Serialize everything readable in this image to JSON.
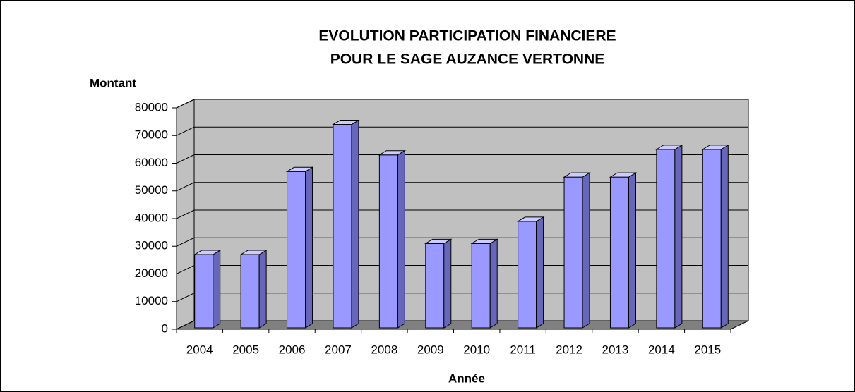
{
  "chart_data": {
    "type": "bar3d",
    "title": [
      "EVOLUTION PARTICIPATION FINANCIERE",
      "POUR LE SAGE AUZANCE VERTONNE"
    ],
    "y_label": "Montant",
    "x_label": "Année",
    "categories": [
      "2004",
      "2005",
      "2006",
      "2007",
      "2008",
      "2009",
      "2010",
      "2011",
      "2012",
      "2013",
      "2014",
      "2015"
    ],
    "values": [
      27000,
      27000,
      57000,
      74000,
      63000,
      31000,
      31000,
      39000,
      55000,
      55000,
      65000,
      65000
    ],
    "color": "#9999ff",
    "ylim": [
      0,
      80000
    ],
    "yticks": [
      0,
      10000,
      20000,
      30000,
      40000,
      50000,
      60000,
      70000,
      80000
    ],
    "grid": true
  }
}
